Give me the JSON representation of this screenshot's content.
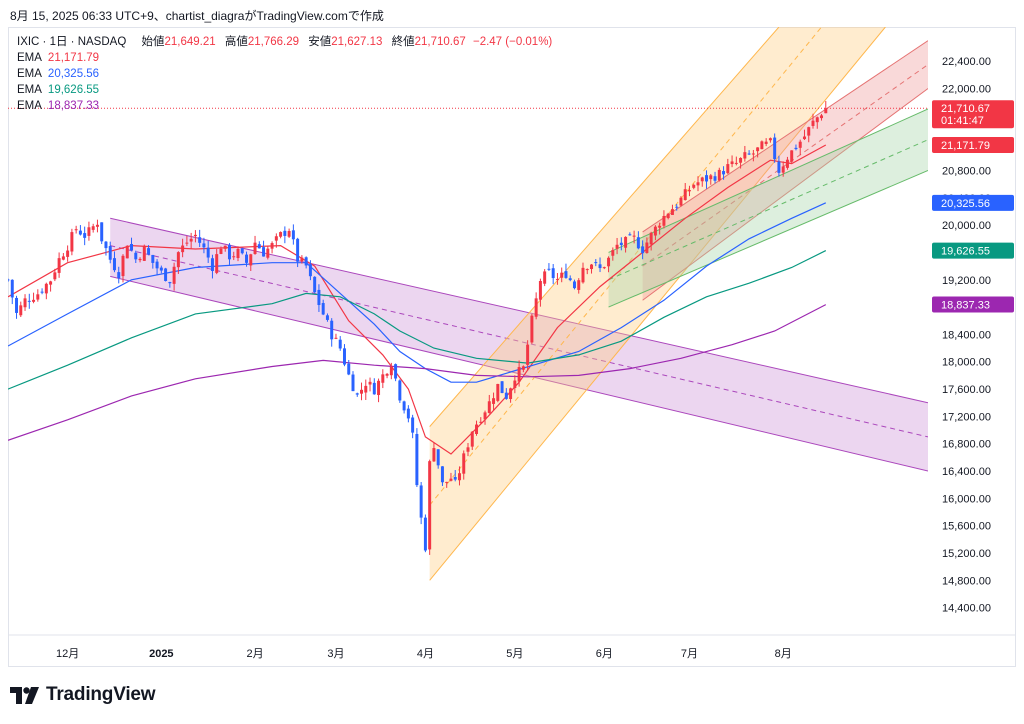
{
  "header": {
    "text": "8月 15, 2025 06:33 UTC+9、chartist_diagraがTradingView.comで作成"
  },
  "symbol": {
    "label": "IXIC · 1日 · NASDAQ"
  },
  "ohlc": {
    "open_label": "始値",
    "open": "21,649.21",
    "high_label": "高値",
    "high": "21,766.29",
    "low_label": "安値",
    "low": "21,627.13",
    "close_label": "終値",
    "close": "21,710.67",
    "change": "−2.47 (−0.01%)"
  },
  "legend": [
    {
      "label": "EMA",
      "value": "21,171.79",
      "color": "#f23645"
    },
    {
      "label": "EMA",
      "value": "20,325.56",
      "color": "#2962ff"
    },
    {
      "label": "EMA",
      "value": "19,626.55",
      "color": "#089981"
    },
    {
      "label": "EMA",
      "value": "18,837.33",
      "color": "#9c27b0"
    }
  ],
  "price_badges": [
    {
      "value": "21,710.67",
      "sub": "01:41:47",
      "color": "#f23645"
    },
    {
      "value": "21,171.79",
      "color": "#f23645"
    },
    {
      "value": "20,325.56",
      "color": "#2962ff"
    },
    {
      "value": "19,626.55",
      "color": "#089981"
    },
    {
      "value": "18,837.33",
      "color": "#9c27b0"
    }
  ],
  "logo": {
    "text": "TradingView"
  },
  "chart_data": {
    "type": "candlestick",
    "y_axis": {
      "ticks": [
        14400,
        14800,
        15200,
        15600,
        16000,
        16400,
        16800,
        17200,
        17600,
        18000,
        18400,
        18800,
        19200,
        19600,
        20000,
        20400,
        20800,
        21200,
        21600,
        22000,
        22400
      ],
      "tick_labels": [
        "14,400.00",
        "14,800.00",
        "15,200.00",
        "15,600.00",
        "16,000.00",
        "16,400.00",
        "16,800.00",
        "17,200.00",
        "17,600.00",
        "18,000.00",
        "18,400.00",
        "18,800.00",
        "19,200.00",
        "19,600.00",
        "20,000.00",
        "20,400.00",
        "20,800.00",
        "21,200.00",
        "21,600.00",
        "22,000.00",
        "22,400.00"
      ],
      "range": [
        14000,
        22900
      ]
    },
    "x_axis": {
      "ticks": [
        {
          "label": "12月",
          "day": 40,
          "bold": false
        },
        {
          "label": "2025",
          "day": 62,
          "bold": true
        },
        {
          "label": "2月",
          "day": 84,
          "bold": false
        },
        {
          "label": "3月",
          "day": 103,
          "bold": false
        },
        {
          "label": "4月",
          "day": 124,
          "bold": false
        },
        {
          "label": "5月",
          "day": 145,
          "bold": false
        },
        {
          "label": "6月",
          "day": 166,
          "bold": false
        },
        {
          "label": "7月",
          "day": 186,
          "bold": false
        },
        {
          "label": "8月",
          "day": 208,
          "bold": false
        }
      ],
      "range": [
        26,
        242
      ]
    },
    "candle_keyframes": [
      [
        26,
        19200
      ],
      [
        28,
        18700
      ],
      [
        30,
        18900
      ],
      [
        33,
        19000
      ],
      [
        36,
        19200
      ],
      [
        38,
        19500
      ],
      [
        40,
        19700
      ],
      [
        42,
        19950
      ],
      [
        44,
        19850
      ],
      [
        45,
        19900
      ],
      [
        47,
        20050
      ],
      [
        48,
        19800
      ],
      [
        50,
        19500
      ],
      [
        52,
        19300
      ],
      [
        54,
        19750
      ],
      [
        56,
        19500
      ],
      [
        58,
        19650
      ],
      [
        60,
        19450
      ],
      [
        62,
        19300
      ],
      [
        64,
        19200
      ],
      [
        66,
        19600
      ],
      [
        68,
        19750
      ],
      [
        70,
        19850
      ],
      [
        72,
        19650
      ],
      [
        74,
        19400
      ],
      [
        76,
        19700
      ],
      [
        78,
        19550
      ],
      [
        80,
        19600
      ],
      [
        82,
        19450
      ],
      [
        84,
        19750
      ],
      [
        86,
        19600
      ],
      [
        88,
        19700
      ],
      [
        90,
        19850
      ],
      [
        92,
        19950
      ],
      [
        94,
        19500
      ],
      [
        96,
        19400
      ],
      [
        98,
        19000
      ],
      [
        100,
        18700
      ],
      [
        102,
        18400
      ],
      [
        104,
        18200
      ],
      [
        106,
        17800
      ],
      [
        108,
        17500
      ],
      [
        110,
        17700
      ],
      [
        112,
        17600
      ],
      [
        114,
        17800
      ],
      [
        116,
        18000
      ],
      [
        118,
        17500
      ],
      [
        120,
        17200
      ],
      [
        121,
        16900
      ],
      [
        122,
        16200
      ],
      [
        123,
        15700
      ],
      [
        124,
        15300
      ],
      [
        125,
        16500
      ],
      [
        126,
        16800
      ],
      [
        128,
        16200
      ],
      [
        130,
        16300
      ],
      [
        131,
        16200
      ],
      [
        133,
        16600
      ],
      [
        135,
        17000
      ],
      [
        137,
        17200
      ],
      [
        139,
        17400
      ],
      [
        141,
        17650
      ],
      [
        143,
        17500
      ],
      [
        145,
        17800
      ],
      [
        147,
        17900
      ],
      [
        149,
        18600
      ],
      [
        151,
        19200
      ],
      [
        153,
        19300
      ],
      [
        155,
        19200
      ],
      [
        157,
        19300
      ],
      [
        159,
        19100
      ],
      [
        161,
        19400
      ],
      [
        163,
        19450
      ],
      [
        165,
        19350
      ],
      [
        167,
        19500
      ],
      [
        169,
        19700
      ],
      [
        171,
        19750
      ],
      [
        173,
        19800
      ],
      [
        175,
        19650
      ],
      [
        177,
        19850
      ],
      [
        179,
        20050
      ],
      [
        181,
        20200
      ],
      [
        183,
        20300
      ],
      [
        185,
        20450
      ],
      [
        187,
        20600
      ],
      [
        189,
        20650
      ],
      [
        191,
        20700
      ],
      [
        193,
        20750
      ],
      [
        195,
        20850
      ],
      [
        197,
        20900
      ],
      [
        199,
        21000
      ],
      [
        201,
        21050
      ],
      [
        203,
        21150
      ],
      [
        205,
        21200
      ],
      [
        207,
        20800
      ],
      [
        209,
        21000
      ],
      [
        211,
        21150
      ],
      [
        213,
        21300
      ],
      [
        215,
        21500
      ],
      [
        217,
        21650
      ],
      [
        218,
        21710
      ]
    ],
    "ema_series": [
      {
        "name": "EMA",
        "value_label": "21,171.79",
        "color": "#f23645",
        "points": [
          [
            26,
            18950
          ],
          [
            40,
            19450
          ],
          [
            55,
            19700
          ],
          [
            70,
            19650
          ],
          [
            90,
            19700
          ],
          [
            98,
            19400
          ],
          [
            106,
            18600
          ],
          [
            114,
            18100
          ],
          [
            120,
            17600
          ],
          [
            124,
            16900
          ],
          [
            130,
            16650
          ],
          [
            138,
            17150
          ],
          [
            146,
            17700
          ],
          [
            155,
            18500
          ],
          [
            165,
            19100
          ],
          [
            175,
            19600
          ],
          [
            185,
            20100
          ],
          [
            195,
            20550
          ],
          [
            205,
            20950
          ],
          [
            210,
            20900
          ],
          [
            218,
            21172
          ]
        ]
      },
      {
        "name": "EMA",
        "value_label": "20,325.56",
        "color": "#2962ff",
        "points": [
          [
            26,
            18230
          ],
          [
            40,
            18700
          ],
          [
            55,
            19200
          ],
          [
            70,
            19380
          ],
          [
            88,
            19450
          ],
          [
            96,
            19450
          ],
          [
            104,
            19000
          ],
          [
            112,
            18550
          ],
          [
            118,
            18150
          ],
          [
            124,
            17900
          ],
          [
            130,
            17700
          ],
          [
            136,
            17700
          ],
          [
            144,
            17850
          ],
          [
            152,
            18000
          ],
          [
            160,
            18150
          ],
          [
            170,
            18500
          ],
          [
            180,
            18900
          ],
          [
            190,
            19400
          ],
          [
            200,
            19800
          ],
          [
            210,
            20100
          ],
          [
            218,
            20326
          ]
        ]
      },
      {
        "name": "EMA",
        "value_label": "19,626.55",
        "color": "#089981",
        "points": [
          [
            26,
            17600
          ],
          [
            40,
            17950
          ],
          [
            55,
            18350
          ],
          [
            70,
            18700
          ],
          [
            88,
            18850
          ],
          [
            96,
            19000
          ],
          [
            104,
            18950
          ],
          [
            112,
            18700
          ],
          [
            118,
            18450
          ],
          [
            126,
            18200
          ],
          [
            136,
            18050
          ],
          [
            148,
            17980
          ],
          [
            160,
            18100
          ],
          [
            170,
            18300
          ],
          [
            180,
            18650
          ],
          [
            190,
            18950
          ],
          [
            200,
            19150
          ],
          [
            210,
            19380
          ],
          [
            218,
            19627
          ]
        ]
      },
      {
        "name": "EMA",
        "value_label": "18,837.33",
        "color": "#9c27b0",
        "points": [
          [
            26,
            16850
          ],
          [
            40,
            17150
          ],
          [
            55,
            17500
          ],
          [
            70,
            17750
          ],
          [
            88,
            17930
          ],
          [
            100,
            18020
          ],
          [
            112,
            17950
          ],
          [
            124,
            17900
          ],
          [
            136,
            17800
          ],
          [
            148,
            17780
          ],
          [
            160,
            17800
          ],
          [
            172,
            17900
          ],
          [
            184,
            18050
          ],
          [
            196,
            18250
          ],
          [
            206,
            18450
          ],
          [
            218,
            18837
          ]
        ]
      }
    ],
    "channels": [
      {
        "name": "purple-descending",
        "fill": "#ce93d8",
        "line": "#ab47bc",
        "top": [
          [
            50,
            20100
          ],
          [
            242,
            17400
          ]
        ],
        "bottom": [
          [
            50,
            19250
          ],
          [
            242,
            16400
          ]
        ],
        "mid": [
          [
            50,
            19700
          ],
          [
            242,
            16900
          ]
        ]
      },
      {
        "name": "orange-ascending",
        "fill": "#ffcc80",
        "line": "#ffb74d",
        "top": [
          [
            125,
            17050
          ],
          [
            207,
            22900
          ]
        ],
        "bottom": [
          [
            125,
            14800
          ],
          [
            232,
            22900
          ]
        ],
        "mid": [
          [
            125,
            15900
          ],
          [
            217,
            22900
          ]
        ]
      },
      {
        "name": "red-ascending",
        "fill": "#ef9a9a",
        "line": "#e57373",
        "top": [
          [
            175,
            19900
          ],
          [
            242,
            22700
          ]
        ],
        "bottom": [
          [
            175,
            18900
          ],
          [
            242,
            22000
          ]
        ],
        "mid": [
          [
            175,
            19400
          ],
          [
            242,
            22350
          ]
        ]
      },
      {
        "name": "green-ascending",
        "fill": "#a5d6a7",
        "line": "#66bb6a",
        "top": [
          [
            167,
            19600
          ],
          [
            242,
            21700
          ]
        ],
        "bottom": [
          [
            167,
            18800
          ],
          [
            242,
            20800
          ]
        ],
        "mid": [
          [
            167,
            19200
          ],
          [
            242,
            21250
          ]
        ]
      }
    ],
    "last_price": 21710.67
  }
}
